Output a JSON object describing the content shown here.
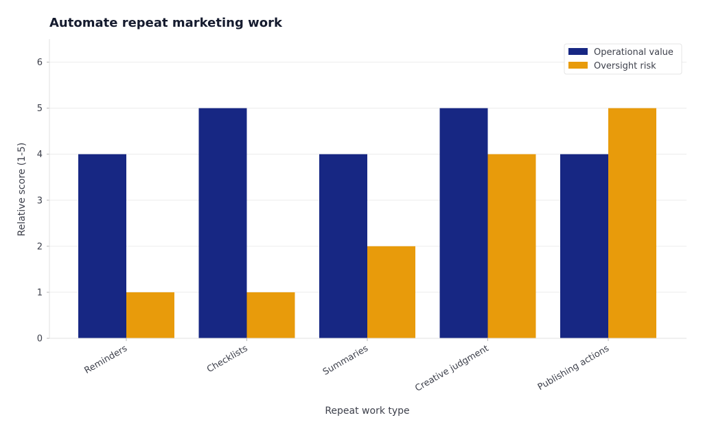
{
  "chart_data": {
    "type": "bar",
    "title": "Automate repeat marketing work",
    "xlabel": "Repeat work type",
    "ylabel": "Relative score (1-5)",
    "categories": [
      "Reminders",
      "Checklists",
      "Summaries",
      "Creative judgment",
      "Publishing actions"
    ],
    "series": [
      {
        "name": "Operational value",
        "values": [
          4,
          5,
          4,
          5,
          4
        ],
        "color": "#172783"
      },
      {
        "name": "Oversight risk",
        "values": [
          1,
          1,
          2,
          4,
          5
        ],
        "color": "#e89b0b"
      }
    ],
    "ylim": [
      0,
      6.5
    ],
    "yticks": [
      0,
      1,
      2,
      3,
      4,
      5,
      6
    ],
    "grid": true,
    "legend_position": "top-right"
  }
}
